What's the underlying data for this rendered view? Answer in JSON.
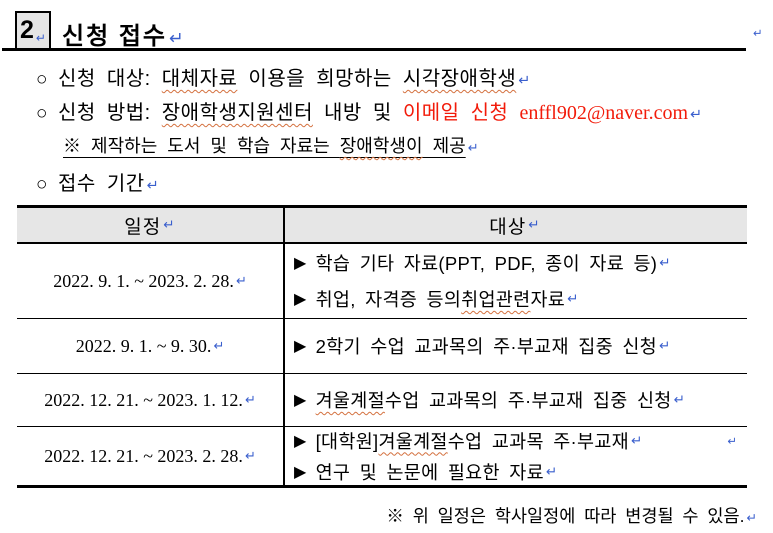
{
  "glyphs": {
    "enter": "↵",
    "circle": "○",
    "triangle": "▶",
    "reference": "※"
  },
  "header": {
    "section_number": "2",
    "title": "신청 접수"
  },
  "bullets": {
    "b1": {
      "pre": "신청 대상: ",
      "wavy1": "대체자료",
      "mid": " 이용을 희망하는 ",
      "wavy2": "시각장애학생"
    },
    "b2": {
      "pre": "신청 방법: ",
      "wavy1": "장애학생지원센터",
      "mid": " 내방 및 ",
      "red_ko": "이메일 신청 ",
      "red_email": "enffl902@naver.com"
    },
    "note": {
      "pre": "제작하는 도서 및 학습 자료는 ",
      "wavy1": "장애학생이",
      "post": " 제공"
    },
    "b3": {
      "label": "접수 기간"
    }
  },
  "table": {
    "headers": {
      "col1": "일정",
      "col2": "대상"
    },
    "rows": [
      {
        "date": "2022. 9. 1. ~ 2023. 2. 28.",
        "items": [
          {
            "pre": "학습 기타 자료(PPT, PDF, 종이 자료 등)",
            "wavy": "",
            "post": ""
          },
          {
            "pre": "취업, 자격증 등의 ",
            "wavy": "취업관련",
            "post": " 자료"
          }
        ]
      },
      {
        "date": "2022. 9. 1. ~ 9. 30.",
        "items": [
          {
            "pre": "2학기 수업 교과목의 주·부교재 집중 신청",
            "wavy": "",
            "post": ""
          }
        ]
      },
      {
        "date": "2022. 12. 21. ~ 2023. 1. 12.",
        "items": [
          {
            "pre": "",
            "wavy": "겨울계절",
            "post": " 수업 교과목의 주·부교재 집중 신청"
          }
        ]
      },
      {
        "date": "2022. 12. 21. ~ 2023. 2. 28.",
        "items": [
          {
            "pre": "[대학원] ",
            "wavy": "겨울계절",
            "post": " 수업 교과목 주·부교재"
          },
          {
            "pre": "연구 및 논문에 필요한 자료 ",
            "wavy": "",
            "post": ""
          }
        ]
      }
    ]
  },
  "footer": {
    "note": "위 일정은 학사일정에 따라 변경될 수 있음."
  },
  "colors": {
    "paragraph_mark_blue": "#3a5fcd",
    "alert_red": "#f21b0a",
    "table_header_bg": "#e6e6e6",
    "spellcheck_wavy": "#d4713f",
    "border_black": "#000000"
  }
}
